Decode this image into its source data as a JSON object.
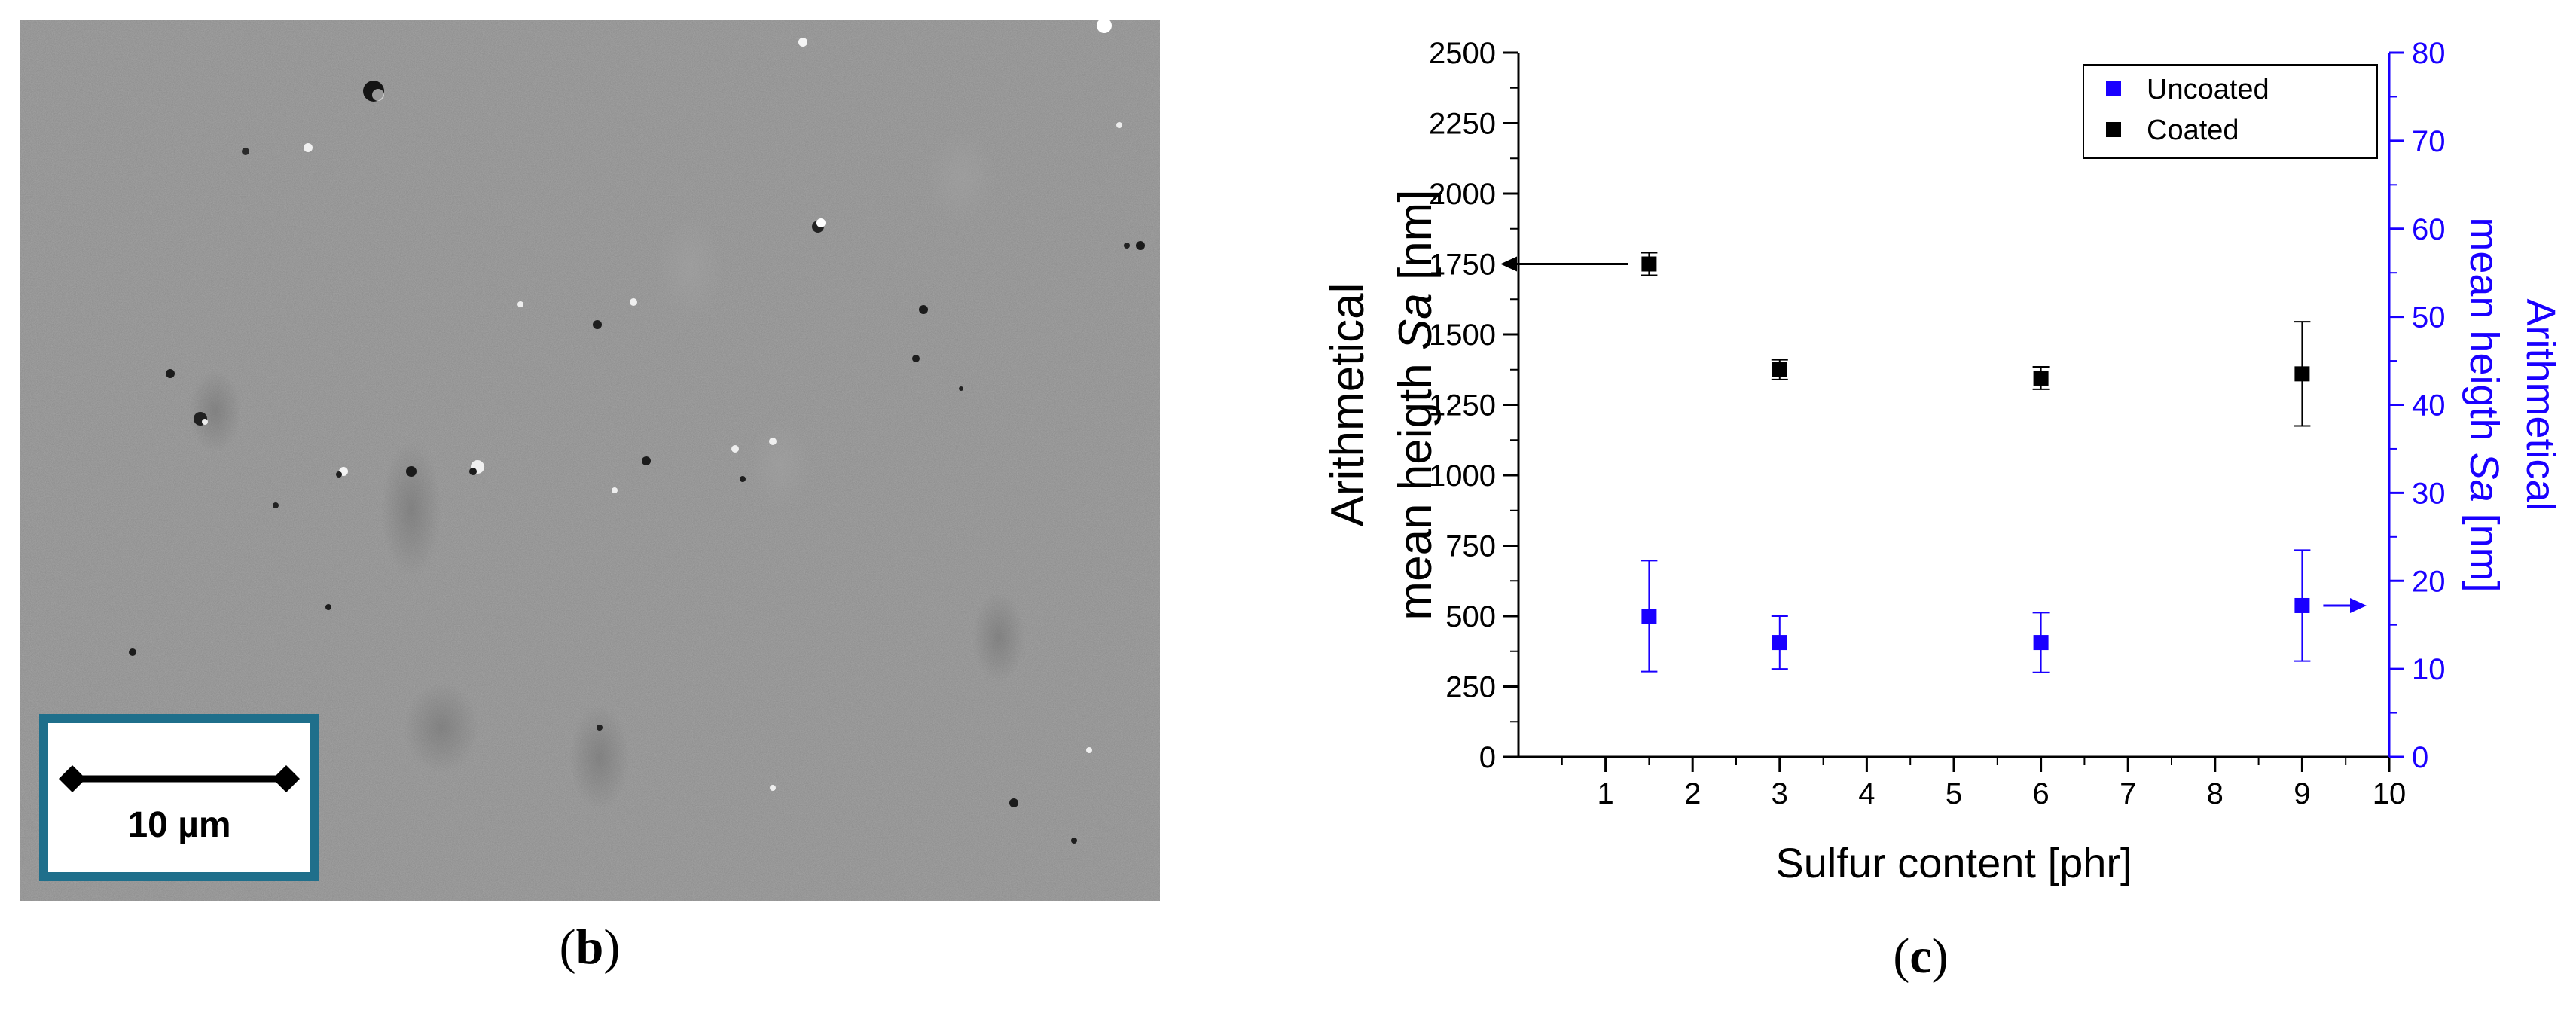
{
  "panels": {
    "b": {
      "open": "(",
      "letter": "b",
      "close": ")"
    },
    "c": {
      "open": "(",
      "letter": "c",
      "close": ")"
    }
  },
  "sem_image": {
    "scale_bar_label": "10 µm",
    "colors": {
      "background": "#8a8a8a",
      "frame": "#1f6f8b"
    }
  },
  "chart_data": {
    "type": "scatter",
    "xlabel": "Sulfur content [phr]",
    "ylabel_line1": "Arithmetical",
    "ylabel_line2_prefix": "mean heigth ",
    "ylabel_line2_italic": "Sa",
    "ylabel_line2_suffix": " [nm]",
    "y2label_line1": "Arithmetical",
    "y2label_line2_prefix": "mean heigth ",
    "y2label_line2_italic": "Sa",
    "y2label_line2_suffix": " [nm]",
    "xlim": [
      0,
      10
    ],
    "ylim": [
      0,
      2500
    ],
    "y2lim": [
      0,
      80
    ],
    "x_ticks": [
      "1",
      "2",
      "3",
      "4",
      "5",
      "6",
      "7",
      "8",
      "9",
      "10"
    ],
    "y_ticks": [
      "0",
      "250",
      "500",
      "750",
      "1000",
      "1250",
      "1500",
      "1750",
      "2000",
      "2250",
      "2500"
    ],
    "y2_ticks": [
      "0",
      "10",
      "20",
      "30",
      "40",
      "50",
      "60",
      "70",
      "80"
    ],
    "legend_position": "top-right",
    "grid": false,
    "series": [
      {
        "name": "Uncoated",
        "axis": "right",
        "color": "#1a00ff",
        "points": [
          {
            "x": 1.5,
            "y": 16.0,
            "err": 6.3
          },
          {
            "x": 3,
            "y": 13.0,
            "err": 3.0
          },
          {
            "x": 6,
            "y": 13.0,
            "err": 3.4
          },
          {
            "x": 9,
            "y": 17.2,
            "err": 6.3
          }
        ]
      },
      {
        "name": "Coated",
        "axis": "left",
        "color": "#000000",
        "points": [
          {
            "x": 1.5,
            "y": 1750,
            "err": 40
          },
          {
            "x": 3,
            "y": 1375,
            "err": 35
          },
          {
            "x": 6,
            "y": 1345,
            "err": 40
          },
          {
            "x": 9,
            "y": 1360,
            "err": 185
          }
        ]
      }
    ],
    "annotations": [
      {
        "series": "Coated",
        "direction": "left",
        "meaning": "left-axis arrow"
      },
      {
        "series": "Uncoated",
        "direction": "right",
        "meaning": "right-axis arrow"
      }
    ]
  }
}
